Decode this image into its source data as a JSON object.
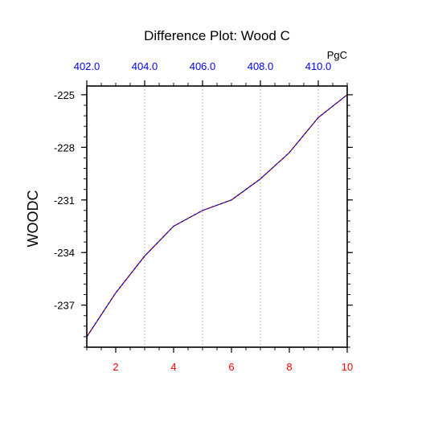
{
  "chart_data": {
    "type": "line",
    "title": "Difference Plot: Wood C",
    "ylabel": "WOODC",
    "top_unit_label": "PgC",
    "x": [
      1,
      2,
      3,
      4,
      5,
      6,
      7,
      8,
      9,
      10
    ],
    "series": [
      {
        "values": [
          -238.8,
          -236.3,
          -234.2,
          -232.5,
          -231.6,
          -231.0,
          -229.8,
          -228.3,
          -226.3,
          -225.0
        ],
        "color": "#8b0000",
        "overlay_color": "#0000ff",
        "dashed": true
      }
    ],
    "xlim": [
      1,
      10
    ],
    "ylim": [
      -239.4,
      -224.5
    ],
    "x_ticks": [
      2,
      4,
      6,
      8,
      10
    ],
    "x_tick_labels": [
      "2",
      "4",
      "6",
      "8",
      "10"
    ],
    "y_ticks": [
      -225,
      -228,
      -231,
      -234,
      -237
    ],
    "y_tick_labels": [
      "-225",
      "-228",
      "-231",
      "-234",
      "-237"
    ],
    "top_axis": {
      "ticks": [
        402.0,
        404.0,
        406.0,
        408.0,
        410.0
      ],
      "tick_labels": [
        "402.0",
        "404.0",
        "406.0",
        "408.0",
        "410.0"
      ],
      "tick_positions_bottom_units": [
        1.0,
        3.0,
        5.0,
        7.0,
        9.0
      ]
    },
    "grid": true,
    "colors": {
      "bottom_ticks": "#ff0000",
      "top_ticks": "#0000ff",
      "axis": "#000000",
      "grid": "#9a9a9a"
    }
  }
}
